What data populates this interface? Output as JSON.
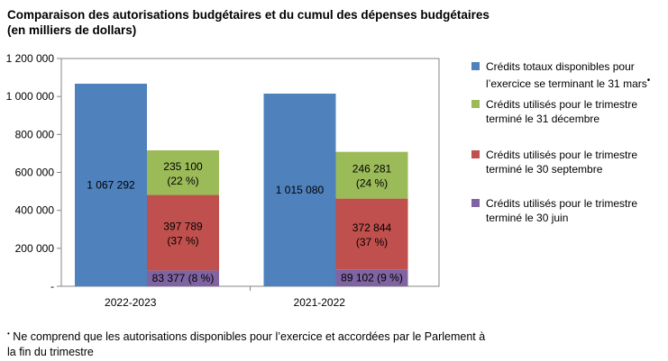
{
  "title_line1": "Comparaison des autorisations budgétaires et du cumul des dépenses budgétaires",
  "title_line2": "(en milliers de dollars)",
  "footnote_marker": "•",
  "footnote_line1": "Ne comprend que les autorisations disponibles pour l’exercice et accordées par le Parlement à",
  "footnote_line2": "la fin du trimestre",
  "legend": [
    {
      "label": "Crédits totaux disponibles pour l’exercice se terminant le 31 mars",
      "marker": "•",
      "color": "#4f81bd"
    },
    {
      "label": "Crédits utilisés pour le trimestre terminé le 31 décembre",
      "color": "#9bbb59"
    },
    {
      "label": "Crédits utilisés pour le trimestre terminé le 30 septembre",
      "color": "#c0504d"
    },
    {
      "label": "Crédits utilisés pour le trimestre terminé le 30 juin",
      "color": "#8064a2"
    }
  ],
  "chart_data": {
    "type": "bar",
    "categories": [
      "2022-2023",
      "2021-2022"
    ],
    "ylim": [
      0,
      1200000
    ],
    "yticks": [
      0,
      200000,
      400000,
      600000,
      800000,
      1000000,
      1200000
    ],
    "ytick_labels": [
      "-",
      "200 000",
      "400 000",
      "600 000",
      "800 000",
      "1 000 000",
      "1 200 000"
    ],
    "grid": false,
    "legend_position": "right",
    "total": {
      "name": "Crédits totaux disponibles pour l’exercice se terminant le 31 mars",
      "color": "#4f81bd",
      "values": [
        1067292,
        1015080
      ],
      "labels": [
        "1 067 292",
        "1 015 080"
      ]
    },
    "stacked_series": [
      {
        "name": "Crédits utilisés pour le trimestre terminé le 30 juin",
        "color": "#8064a2",
        "values": [
          83377,
          89102
        ],
        "labels": [
          "83 377 (8 %)",
          "89 102 (9 %)"
        ]
      },
      {
        "name": "Crédits utilisés pour le trimestre terminé le 30 septembre",
        "color": "#c0504d",
        "values": [
          397789,
          372844
        ],
        "labels": [
          [
            "397 789",
            "(37 %)"
          ],
          [
            "372 844",
            "(37 %)"
          ]
        ]
      },
      {
        "name": "Crédits utilisés pour le trimestre terminé le 31 décembre",
        "color": "#9bbb59",
        "values": [
          235100,
          246281
        ],
        "labels": [
          [
            "235 100",
            "(22 %)"
          ],
          [
            "246 281",
            "(24 %)"
          ]
        ]
      }
    ]
  }
}
